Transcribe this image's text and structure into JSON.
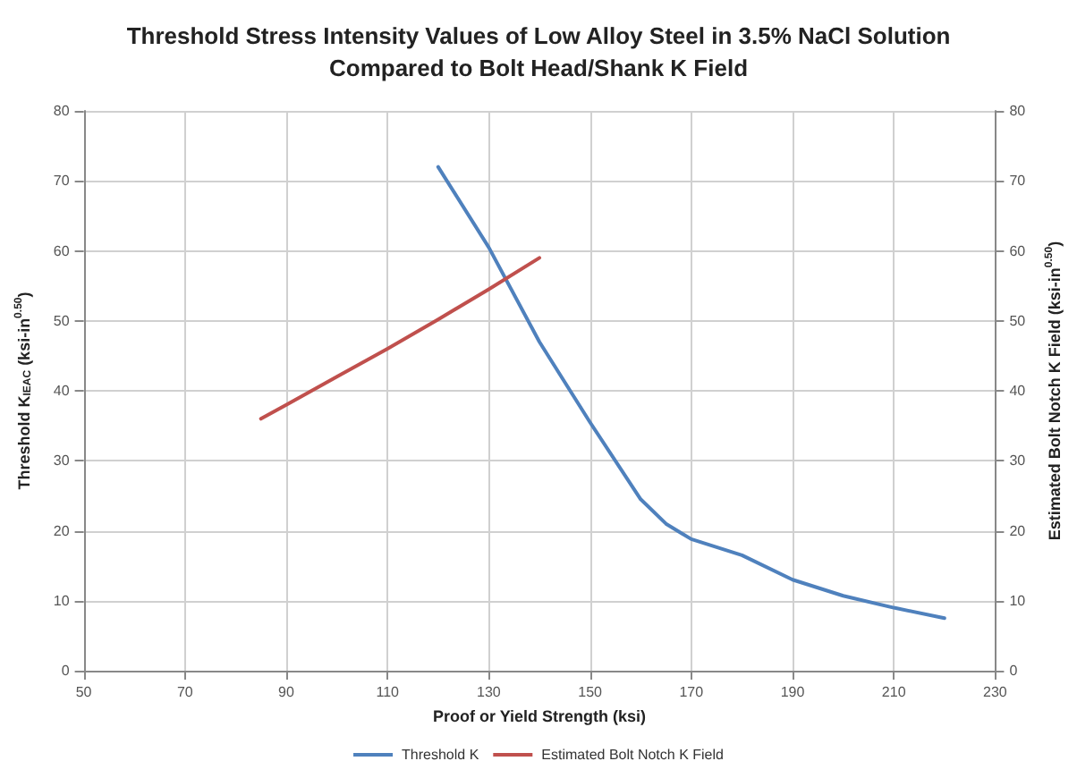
{
  "chart_data": {
    "type": "line",
    "title": "Threshold Stress Intensity Values of Low Alloy Steel in 3.5% NaCl Solution\nCompared to Bolt Head/Shank K Field",
    "xlabel": "Proof or Yield Strength (ksi)",
    "ylabel": "Threshold K$_{IEAC}$ (ksi-in$^{0.50}$)",
    "y2label": "Estimated Bolt Notch K Field (ksi-in$^{0.50}$)",
    "xlim": [
      50,
      230
    ],
    "xticks": [
      50,
      70,
      90,
      110,
      130,
      150,
      170,
      190,
      210,
      230
    ],
    "ylim": [
      0,
      80
    ],
    "yticks": [
      0,
      10,
      20,
      30,
      40,
      50,
      60,
      70,
      80
    ],
    "y2lim": [
      0,
      80
    ],
    "y2ticks": [
      0,
      10,
      20,
      30,
      40,
      50,
      60,
      70,
      80
    ],
    "grid": true,
    "legend": "bottom",
    "marker": "none",
    "line_style": "solid",
    "series": [
      {
        "name": "Threshold K",
        "color": "#4f81bd",
        "x": [
          120,
          130,
          140,
          150,
          160,
          165,
          170,
          180,
          190,
          200,
          210,
          220
        ],
        "values": [
          72,
          60.5,
          47,
          35.5,
          24.5,
          21,
          18.8,
          16.5,
          13,
          10.7,
          9,
          7.5
        ]
      },
      {
        "name": "Estimated Bolt Notch K Field",
        "color": "#c0504d",
        "axis": "y2",
        "x": [
          85,
          90,
          100,
          110,
          120,
          130,
          140
        ],
        "values": [
          36,
          38,
          42,
          46,
          50.2,
          54.5,
          59
        ]
      }
    ]
  }
}
